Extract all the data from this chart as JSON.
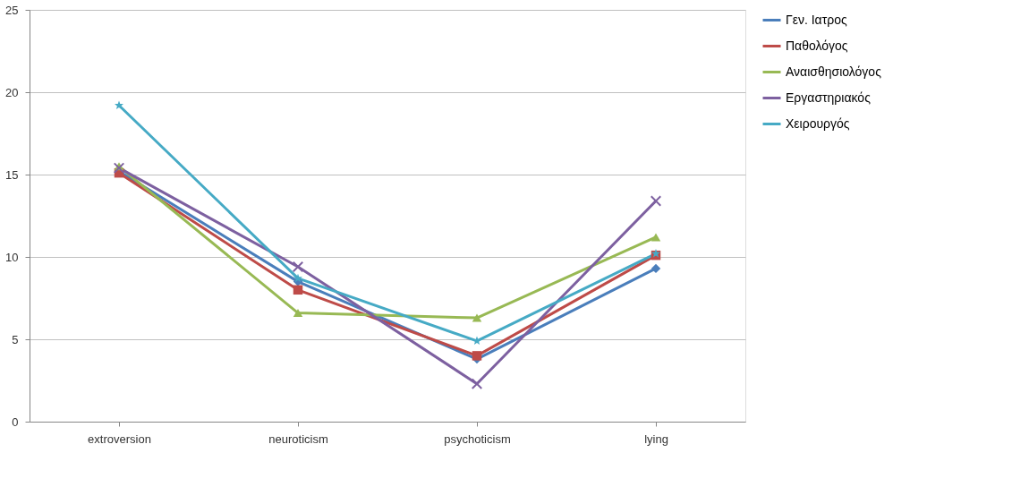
{
  "chart_data": {
    "type": "line",
    "categories": [
      "extroversion",
      "neuroticism",
      "psychoticism",
      "lying"
    ],
    "ylim": [
      0,
      25
    ],
    "yticks": [
      0,
      5,
      10,
      15,
      20,
      25
    ],
    "grid": "y",
    "legend": "right",
    "series": [
      {
        "name": "Γεν. Ιατρος",
        "color": "#4a7ebb",
        "marker": "diamond",
        "values": [
          15.2,
          8.5,
          3.8,
          9.3
        ]
      },
      {
        "name": "Παθολόγος",
        "color": "#be4b48",
        "marker": "square",
        "values": [
          15.1,
          8.0,
          4.0,
          10.1
        ]
      },
      {
        "name": "Αναισθησιολόγος",
        "color": "#98b954",
        "marker": "triangle",
        "values": [
          15.5,
          6.6,
          6.3,
          11.2
        ]
      },
      {
        "name": "Εργαστηριακός",
        "color": "#7d60a0",
        "marker": "cross",
        "values": [
          15.4,
          9.4,
          2.3,
          13.4
        ]
      },
      {
        "name": "Χειρουργός",
        "color": "#46aac5",
        "marker": "star",
        "values": [
          19.2,
          8.7,
          4.9,
          10.2
        ]
      }
    ]
  }
}
